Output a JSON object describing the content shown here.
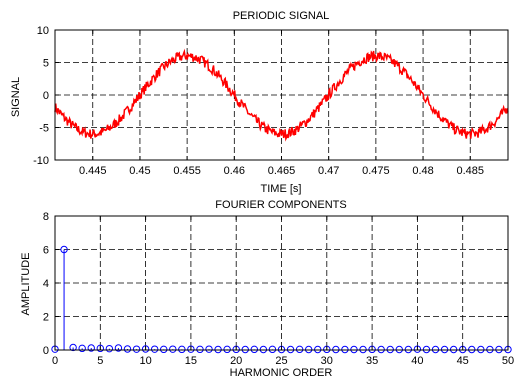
{
  "chart_data": [
    {
      "type": "line",
      "title": "PERIODIC SIGNAL",
      "xlabel": "TIME [s]",
      "ylabel": "SIGNAL",
      "xlim": [
        0.441,
        0.489
      ],
      "ylim": [
        -10,
        10
      ],
      "xticks": [
        0.445,
        0.45,
        0.455,
        0.46,
        0.465,
        0.47,
        0.475,
        0.48,
        0.485
      ],
      "xtick_labels": [
        "0.445",
        "0.45",
        "0.455",
        "0.46",
        "0.465",
        "0.47",
        "0.475",
        "0.48",
        "0.485"
      ],
      "yticks": [
        -10,
        -5,
        0,
        5,
        10
      ],
      "ytick_labels": [
        "-10",
        "-5",
        "0",
        "5",
        "10"
      ],
      "grid": "dashed",
      "color": "#ff0000",
      "signal": {
        "amplitude": 6.0,
        "frequency_hz": 50,
        "peak_time": 0.455,
        "noise_amplitude": 0.8
      }
    },
    {
      "type": "stem",
      "title": "FOURIER COMPONENTS",
      "xlabel": "HARMONIC ORDER",
      "ylabel": "AMPLITUDE",
      "xlim": [
        0,
        50
      ],
      "ylim": [
        0,
        8
      ],
      "xticks": [
        0,
        5,
        10,
        15,
        20,
        25,
        30,
        35,
        40,
        45,
        50
      ],
      "xtick_labels": [
        "0",
        "5",
        "10",
        "15",
        "20",
        "25",
        "30",
        "35",
        "40",
        "45",
        "50"
      ],
      "yticks": [
        0,
        2,
        4,
        6,
        8
      ],
      "ytick_labels": [
        "0",
        "2",
        "4",
        "6",
        "8"
      ],
      "grid": "dashed",
      "color": "#0000ff",
      "x": [
        0,
        1,
        2,
        3,
        4,
        5,
        6,
        7,
        8,
        9,
        10,
        11,
        12,
        13,
        14,
        15,
        16,
        17,
        18,
        19,
        20,
        21,
        22,
        23,
        24,
        25,
        26,
        27,
        28,
        29,
        30,
        31,
        32,
        33,
        34,
        35,
        36,
        37,
        38,
        39,
        40,
        41,
        42,
        43,
        44,
        45,
        46,
        47,
        48,
        49,
        50
      ],
      "values": [
        0.05,
        6.0,
        0.15,
        0.1,
        0.12,
        0.1,
        0.08,
        0.12,
        0.06,
        0.05,
        0.06,
        0.05,
        0.04,
        0.05,
        0.04,
        0.05,
        0.04,
        0.05,
        0.03,
        0.04,
        0.04,
        0.03,
        0.04,
        0.03,
        0.04,
        0.03,
        0.03,
        0.04,
        0.03,
        0.03,
        0.04,
        0.03,
        0.03,
        0.03,
        0.03,
        0.04,
        0.03,
        0.03,
        0.03,
        0.03,
        0.05,
        0.03,
        0.03,
        0.03,
        0.03,
        0.03,
        0.03,
        0.03,
        0.03,
        0.03,
        0.03
      ]
    }
  ]
}
